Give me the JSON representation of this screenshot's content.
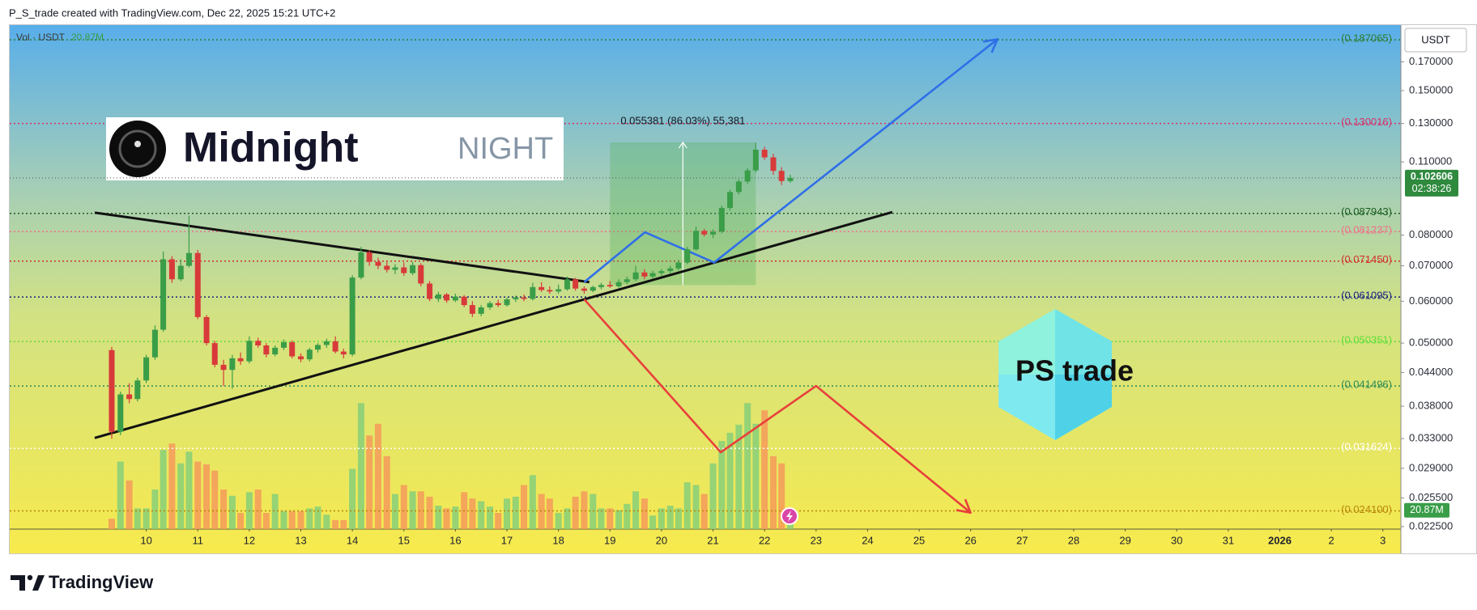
{
  "header": {
    "text": "P_S_trade created with TradingView.com, Dec 22, 2025 15:21 UTC+2"
  },
  "footer": {
    "brand": "TradingView"
  },
  "overlays": {
    "midnight_name": "Midnight",
    "midnight_ticker": "NIGHT",
    "ps_logo": "PS trade"
  },
  "chart_data": {
    "type": "candlestick",
    "log_scale": true,
    "grid": false,
    "currency_button": "USDT",
    "xlim": [
      7.35,
      34.35
    ],
    "xticks": [
      10,
      11,
      12,
      13,
      14,
      15,
      16,
      17,
      18,
      19,
      20,
      21,
      22,
      23,
      24,
      25,
      26,
      27,
      28,
      29,
      30,
      31,
      {
        "value": 32,
        "label": "2026"
      },
      {
        "value": 33,
        "label": "2"
      },
      {
        "value": 34,
        "label": "3"
      }
    ],
    "ylim": [
      0.02226,
      0.1995
    ],
    "yticks": [
      {
        "value": 0.17,
        "label": "0.170000"
      },
      {
        "value": 0.15,
        "label": "0.150000"
      },
      {
        "value": 0.13,
        "label": "0.130000"
      },
      {
        "value": 0.11,
        "label": "0.110000"
      },
      {
        "value": 0.08,
        "label": "0.080000"
      },
      {
        "value": 0.07,
        "label": "0.070000"
      },
      {
        "value": 0.06,
        "label": "0.060000"
      },
      {
        "value": 0.05,
        "label": "0.050000"
      },
      {
        "value": 0.044,
        "label": "0.044000"
      },
      {
        "value": 0.038,
        "label": "0.038000"
      },
      {
        "value": 0.033,
        "label": "0.033000"
      },
      {
        "value": 0.029,
        "label": "0.029000"
      },
      {
        "value": 0.0255,
        "label": "0.025500"
      },
      {
        "value": 0.0225,
        "label": "0.022500"
      }
    ],
    "up_color": "#3a9d48",
    "down_color": "#d83a3a",
    "x": [
      9.33,
      9.5,
      9.67,
      9.83,
      10,
      10.17,
      10.33,
      10.5,
      10.67,
      10.83,
      11,
      11.17,
      11.33,
      11.5,
      11.67,
      11.83,
      12,
      12.17,
      12.33,
      12.5,
      12.67,
      12.83,
      13,
      13.17,
      13.33,
      13.5,
      13.67,
      13.83,
      14,
      14.17,
      14.33,
      14.5,
      14.67,
      14.83,
      15,
      15.17,
      15.33,
      15.5,
      15.67,
      15.83,
      16,
      16.17,
      16.33,
      16.5,
      16.67,
      16.83,
      17,
      17.17,
      17.33,
      17.5,
      17.67,
      17.83,
      18,
      18.17,
      18.33,
      18.5,
      18.67,
      18.83,
      19,
      19.17,
      19.33,
      19.5,
      19.67,
      19.83,
      20,
      20.17,
      20.33,
      20.5,
      20.67,
      20.83,
      21,
      21.17,
      21.33,
      21.5,
      21.67,
      21.83,
      22,
      22.17,
      22.33,
      22.5
    ],
    "candles": {
      "open": [
        0.0485,
        0.034,
        0.04,
        0.0392,
        0.0425,
        0.047,
        0.053,
        0.072,
        0.066,
        0.07,
        0.074,
        0.056,
        0.05,
        0.0455,
        0.0445,
        0.0468,
        0.0462,
        0.0505,
        0.0495,
        0.0476,
        0.049,
        0.0502,
        0.0472,
        0.0466,
        0.0486,
        0.0496,
        0.0504,
        0.0482,
        0.0476,
        0.0665,
        0.0742,
        0.0712,
        0.07,
        0.0688,
        0.0695,
        0.0678,
        0.0702,
        0.0648,
        0.0606,
        0.0618,
        0.0602,
        0.0612,
        0.059,
        0.0568,
        0.0584,
        0.0595,
        0.059,
        0.0605,
        0.061,
        0.0606,
        0.0638,
        0.063,
        0.0626,
        0.0632,
        0.066,
        0.0634,
        0.0628,
        0.0638,
        0.0644,
        0.064,
        0.0652,
        0.066,
        0.068,
        0.0668,
        0.0678,
        0.0684,
        0.0692,
        0.071,
        0.0752,
        0.0815,
        0.0802,
        0.0812,
        0.09,
        0.0965,
        0.101,
        0.106,
        0.116,
        0.1122,
        0.1058,
        0.1012
      ],
      "high": [
        0.0492,
        0.0405,
        0.042,
        0.043,
        0.0475,
        0.054,
        0.0745,
        0.073,
        0.072,
        0.087,
        0.075,
        0.0565,
        0.0505,
        0.0465,
        0.0475,
        0.048,
        0.0515,
        0.0512,
        0.05,
        0.0495,
        0.0508,
        0.0506,
        0.0478,
        0.049,
        0.05,
        0.051,
        0.0515,
        0.0488,
        0.0672,
        0.076,
        0.075,
        0.0725,
        0.0712,
        0.0705,
        0.071,
        0.0712,
        0.0708,
        0.0655,
        0.0625,
        0.0622,
        0.062,
        0.0616,
        0.06,
        0.059,
        0.06,
        0.0604,
        0.061,
        0.0615,
        0.0618,
        0.065,
        0.0652,
        0.064,
        0.0645,
        0.0668,
        0.0664,
        0.064,
        0.0642,
        0.065,
        0.0655,
        0.066,
        0.0668,
        0.07,
        0.069,
        0.0685,
        0.069,
        0.07,
        0.0718,
        0.076,
        0.083,
        0.0822,
        0.082,
        0.091,
        0.0975,
        0.102,
        0.107,
        0.1195,
        0.1175,
        0.114,
        0.1075,
        0.104
      ],
      "low": [
        0.033,
        0.0335,
        0.0385,
        0.0388,
        0.042,
        0.0465,
        0.0525,
        0.065,
        0.0655,
        0.0695,
        0.0555,
        0.0495,
        0.045,
        0.0415,
        0.041,
        0.0455,
        0.0458,
        0.049,
        0.047,
        0.0472,
        0.0485,
        0.0468,
        0.046,
        0.0462,
        0.048,
        0.049,
        0.0478,
        0.0468,
        0.0472,
        0.066,
        0.07,
        0.069,
        0.068,
        0.0675,
        0.067,
        0.0672,
        0.064,
        0.06,
        0.0598,
        0.0596,
        0.0598,
        0.0585,
        0.056,
        0.0562,
        0.0578,
        0.0585,
        0.0586,
        0.0598,
        0.06,
        0.0602,
        0.0625,
        0.062,
        0.062,
        0.0628,
        0.0628,
        0.062,
        0.0624,
        0.0632,
        0.0636,
        0.0636,
        0.0646,
        0.0655,
        0.066,
        0.0662,
        0.067,
        0.0676,
        0.0686,
        0.0705,
        0.0748,
        0.0795,
        0.079,
        0.0806,
        0.089,
        0.0955,
        0.1,
        0.105,
        0.111,
        0.104,
        0.0995,
        0.1005
      ],
      "close": [
        0.034,
        0.04,
        0.0392,
        0.0425,
        0.047,
        0.053,
        0.072,
        0.066,
        0.07,
        0.074,
        0.056,
        0.05,
        0.0455,
        0.0445,
        0.0468,
        0.0462,
        0.0505,
        0.0495,
        0.0476,
        0.049,
        0.0502,
        0.0472,
        0.0466,
        0.0486,
        0.0496,
        0.0504,
        0.0482,
        0.0476,
        0.0665,
        0.0742,
        0.0712,
        0.07,
        0.0688,
        0.0695,
        0.0678,
        0.0702,
        0.0648,
        0.0606,
        0.0618,
        0.0602,
        0.0612,
        0.059,
        0.0568,
        0.0584,
        0.0595,
        0.059,
        0.0605,
        0.061,
        0.0606,
        0.0638,
        0.063,
        0.0626,
        0.0632,
        0.066,
        0.0634,
        0.0628,
        0.0638,
        0.0644,
        0.064,
        0.0652,
        0.066,
        0.068,
        0.0668,
        0.0678,
        0.0684,
        0.0692,
        0.071,
        0.0752,
        0.0815,
        0.0802,
        0.0812,
        0.09,
        0.0965,
        0.101,
        0.106,
        0.116,
        0.1122,
        0.1058,
        0.1012,
        0.102606
      ]
    },
    "last_price": 0.102606,
    "countdown": "02:38:26",
    "last_price_color": "#2f8a3e",
    "volume": {
      "title": "Vol · USDT",
      "vlim": [
        0,
        560
      ],
      "up_color": "#86cf79",
      "down_color": "#f59a5b",
      "values": [
        11.5,
        75,
        54,
        23,
        23,
        44,
        88,
        95,
        73,
        86,
        75,
        72,
        65,
        44,
        37,
        18,
        41,
        44,
        18,
        39,
        20,
        20,
        20,
        23,
        25,
        16,
        10,
        10,
        67,
        140,
        104,
        117,
        81,
        39,
        49,
        42,
        42,
        36,
        26,
        23,
        25,
        41,
        34,
        31,
        25,
        18,
        34,
        36,
        49,
        60,
        39,
        34,
        18,
        23,
        36,
        42,
        39,
        23,
        23,
        21,
        28,
        42,
        34,
        15,
        23,
        26,
        23,
        52,
        49,
        39,
        73,
        98,
        107,
        116,
        140,
        117,
        132,
        81,
        73,
        20.87
      ],
      "last": {
        "value": 20.87,
        "label": "20.87M"
      },
      "label_color": "#3a9d48"
    },
    "levels": [
      {
        "value": 0.187065,
        "label": "(0.187065)",
        "color": "#2e7d32"
      },
      {
        "value": 0.130016,
        "label": "(0.130016)",
        "color": "#d6336c"
      },
      {
        "value": 0.087943,
        "label": "(0.087943)",
        "color": "#1b5e20"
      },
      {
        "value": 0.081237,
        "label": "(0.081237)",
        "color": "#f0708a"
      },
      {
        "value": 0.07145,
        "label": "(0.071450)",
        "color": "#d32f2f"
      },
      {
        "value": 0.061095,
        "label": "(0.061095)",
        "color": "#1a237e"
      },
      {
        "value": 0.050351,
        "label": "(0.050351)",
        "color": "#5fe03a"
      },
      {
        "value": 0.041496,
        "label": "(0.041496)",
        "color": "#2e8b57"
      },
      {
        "value": 0.031624,
        "label": "(0.031624)",
        "color": "#ffffff"
      },
      {
        "value": 0.0241,
        "label": "(0.024100)",
        "color": "#b8860b"
      }
    ],
    "measure": {
      "label": "0.055381 (86.03%) 55,381",
      "x": [
        19.0,
        21.83
      ],
      "from": 0.064375,
      "to": 0.119756,
      "color": "#4caf50"
    },
    "drawings": [
      {
        "type": "trendline",
        "color": "#111111",
        "x": [
          9.0,
          18.6
        ],
        "y": [
          0.0882,
          0.0652
        ]
      },
      {
        "type": "trendline",
        "color": "#111111",
        "x": [
          9.0,
          24.48
        ],
        "y": [
          0.0331,
          0.0884
        ]
      },
      {
        "type": "arrow",
        "color": "#2f6fe8",
        "x": [
          18.5,
          19.68,
          21.02,
          26.52
        ],
        "y": [
          0.0652,
          0.081,
          0.071,
          0.1876
        ]
      },
      {
        "type": "arrow",
        "color": "#e8403c",
        "x": [
          18.5,
          21.15,
          23.0,
          26.0
        ],
        "y": [
          0.0605,
          0.0311,
          0.0415,
          0.0239
        ]
      }
    ]
  }
}
